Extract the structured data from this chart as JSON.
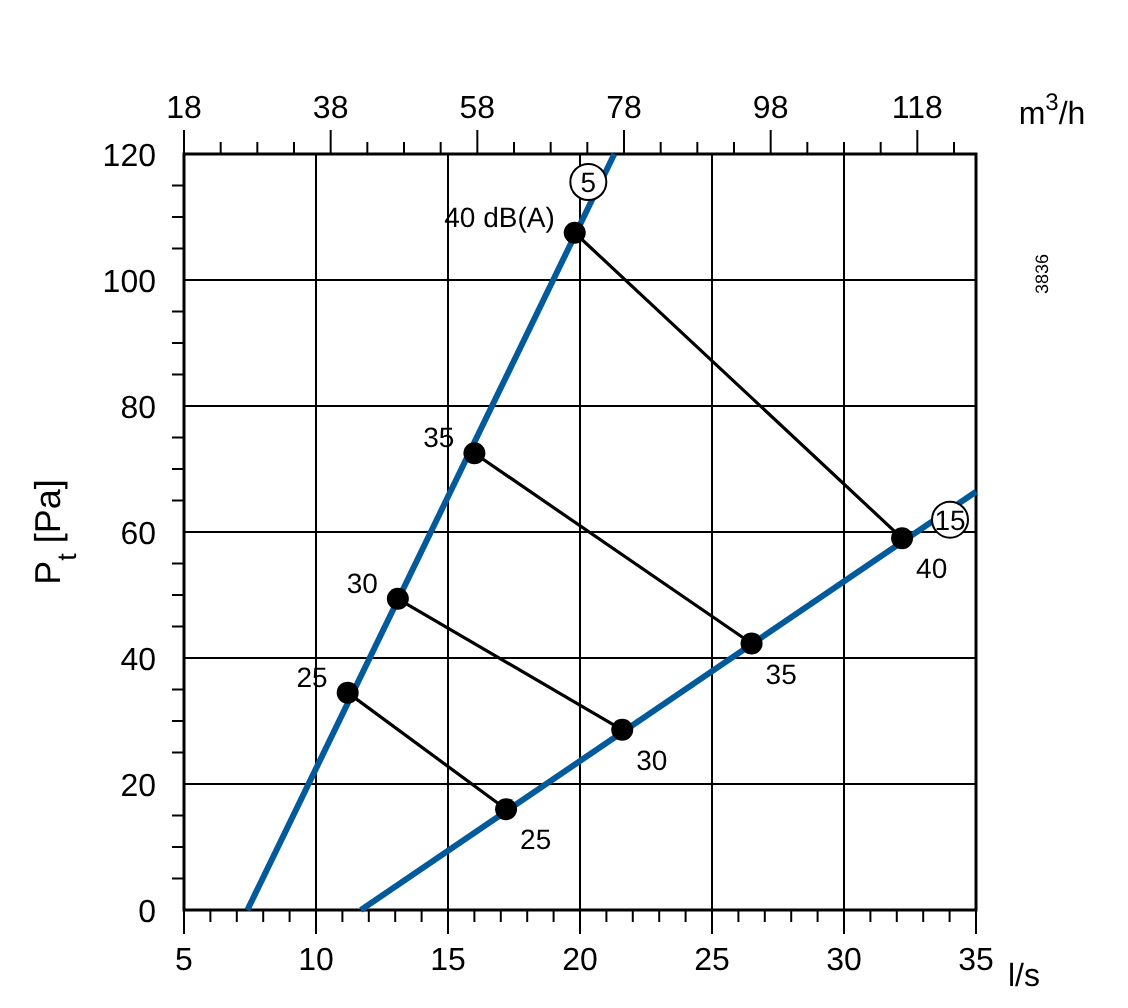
{
  "chart_data": {
    "type": "line",
    "xlabel": "l/s",
    "ylabel": "P$_{t}$ [Pa]",
    "x2label": "m$^{3}$/h",
    "xlim": [
      5,
      35
    ],
    "xticks": [
      5,
      {
        "value": 6,
        "label": null
      },
      {
        "value": 7,
        "label": null
      },
      {
        "value": 8,
        "label": null
      },
      {
        "value": 9,
        "label": null
      },
      10,
      {
        "value": 11,
        "label": null
      },
      {
        "value": 12,
        "label": null
      },
      {
        "value": 13,
        "label": null
      },
      {
        "value": 14,
        "label": null
      },
      15,
      {
        "value": 16,
        "label": null
      },
      {
        "value": 17,
        "label": null
      },
      {
        "value": 18,
        "label": null
      },
      {
        "value": 19,
        "label": null
      },
      20,
      {
        "value": 21,
        "label": null
      },
      {
        "value": 22,
        "label": null
      },
      {
        "value": 23,
        "label": null
      },
      {
        "value": 24,
        "label": null
      },
      25,
      {
        "value": 26,
        "label": null
      },
      {
        "value": 27,
        "label": null
      },
      {
        "value": 28,
        "label": null
      },
      {
        "value": 29,
        "label": null
      },
      30,
      {
        "value": 31,
        "label": null
      },
      {
        "value": 32,
        "label": null
      },
      {
        "value": 33,
        "label": null
      },
      {
        "value": 34,
        "label": null
      },
      35
    ],
    "x2lim": [
      18,
      126
    ],
    "x2ticks": [
      18,
      {
        "value": 23,
        "label": null
      },
      {
        "value": 28,
        "label": null
      },
      {
        "value": 33,
        "label": null
      },
      38,
      {
        "value": 43,
        "label": null
      },
      {
        "value": 48,
        "label": null
      },
      {
        "value": 53,
        "label": null
      },
      58,
      {
        "value": 63,
        "label": null
      },
      {
        "value": 68,
        "label": null
      },
      {
        "value": 73,
        "label": null
      },
      78,
      {
        "value": 83,
        "label": null
      },
      {
        "value": 88,
        "label": null
      },
      {
        "value": 93,
        "label": null
      },
      98,
      {
        "value": 103,
        "label": null
      },
      {
        "value": 108,
        "label": null
      },
      {
        "value": 113,
        "label": null
      },
      118,
      {
        "value": 123,
        "label": null
      }
    ],
    "ylim": [
      0,
      120
    ],
    "yticks": [
      0,
      {
        "value": 5,
        "label": null
      },
      {
        "value": 10,
        "label": null
      },
      {
        "value": 15,
        "label": null
      },
      20,
      {
        "value": 25,
        "label": null
      },
      {
        "value": 30,
        "label": null
      },
      {
        "value": 35,
        "label": null
      },
      40,
      {
        "value": 45,
        "label": null
      },
      {
        "value": 50,
        "label": null
      },
      {
        "value": 55,
        "label": null
      },
      60,
      {
        "value": 65,
        "label": null
      },
      {
        "value": 70,
        "label": null
      },
      {
        "value": 75,
        "label": null
      },
      80,
      {
        "value": 85,
        "label": null
      },
      {
        "value": 90,
        "label": null
      },
      {
        "value": 95,
        "label": null
      },
      100,
      {
        "value": 105,
        "label": null
      },
      {
        "value": 110,
        "label": null
      },
      {
        "value": 115,
        "label": null
      },
      120
    ],
    "grid": true,
    "line_style": "solid",
    "series": [
      {
        "name": "5",
        "color": "#005a9c",
        "x": [
          7.4,
          21.3
        ],
        "values": [
          0,
          120
        ],
        "marker": "none"
      },
      {
        "name": "15",
        "color": "#005a9c",
        "x": [
          11.7,
          35
        ],
        "values": [
          0,
          66.4
        ],
        "marker": "none"
      },
      {
        "color": "#000000",
        "x": [
          19.8,
          32.2
        ],
        "values": [
          107.5,
          59
        ],
        "marker": "circle"
      },
      {
        "color": "#000000",
        "x": [
          16,
          26.5
        ],
        "values": [
          72.5,
          42.3
        ],
        "marker": "circle"
      },
      {
        "color": "#000000",
        "x": [
          13.1,
          21.6
        ],
        "values": [
          49.4,
          28.6
        ],
        "marker": "circle"
      },
      {
        "color": "#000000",
        "x": [
          11.2,
          17.2
        ],
        "values": [
          34.5,
          16
        ],
        "marker": "circle"
      }
    ],
    "annotations": [
      {
        "text": "40 dB(A)",
        "x": 19.8,
        "y": 107.5
      },
      {
        "text": "35",
        "x": 16,
        "y": 72.5
      },
      {
        "text": "30",
        "x": 13.1,
        "y": 49.4
      },
      {
        "text": "25",
        "x": 11.2,
        "y": 34.5
      },
      {
        "text": "40",
        "x": 32.2,
        "y": 59
      },
      {
        "text": "35",
        "x": 26.5,
        "y": 42.3
      },
      {
        "text": "30",
        "x": 21.6,
        "y": 28.6
      },
      {
        "text": "25",
        "x": 17.2,
        "y": 16
      },
      "3836"
    ]
  }
}
